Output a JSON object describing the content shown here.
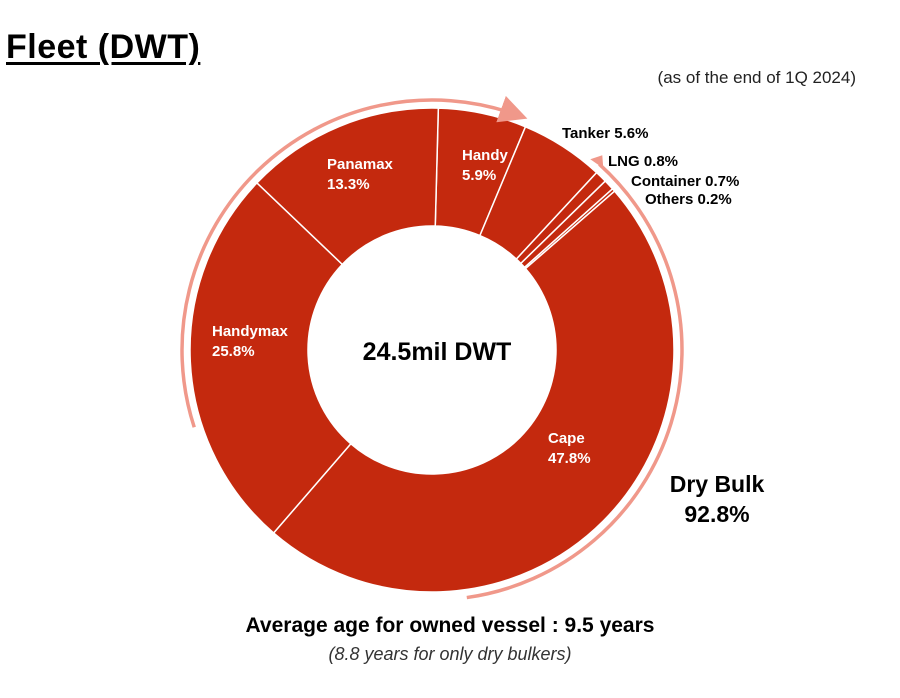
{
  "header": {
    "title": "Fleet (DWT)",
    "subtitle": "(as of the end of 1Q 2024)"
  },
  "chart_data": {
    "type": "pie",
    "center_label": "24.5mil DWT",
    "slices": [
      {
        "label": "Cape",
        "value": 47.8,
        "value_text": "47.8%"
      },
      {
        "label": "Handymax",
        "value": 25.8,
        "value_text": "25.8%"
      },
      {
        "label": "Panamax",
        "value": 13.3,
        "value_text": "13.3%"
      },
      {
        "label": "Handy",
        "value": 5.9,
        "value_text": "5.9%"
      },
      {
        "label": "Tanker",
        "value": 5.6,
        "value_text": "5.6%"
      },
      {
        "label": "LNG",
        "value": 0.8,
        "value_text": "0.8%"
      },
      {
        "label": "Container",
        "value": 0.7,
        "value_text": "0.7%"
      },
      {
        "label": "Others",
        "value": 0.2,
        "value_text": "0.2%"
      }
    ],
    "group": {
      "label": "Dry Bulk",
      "value": 92.8,
      "value_text": "92.8%"
    },
    "colors": {
      "slice": "#c4290e",
      "arc": "#f0988a",
      "border": "#ffffff"
    }
  },
  "footer": {
    "main": "Average age for owned vessel : 9.5 years",
    "sub": "(8.8 years for only dry bulkers)"
  }
}
